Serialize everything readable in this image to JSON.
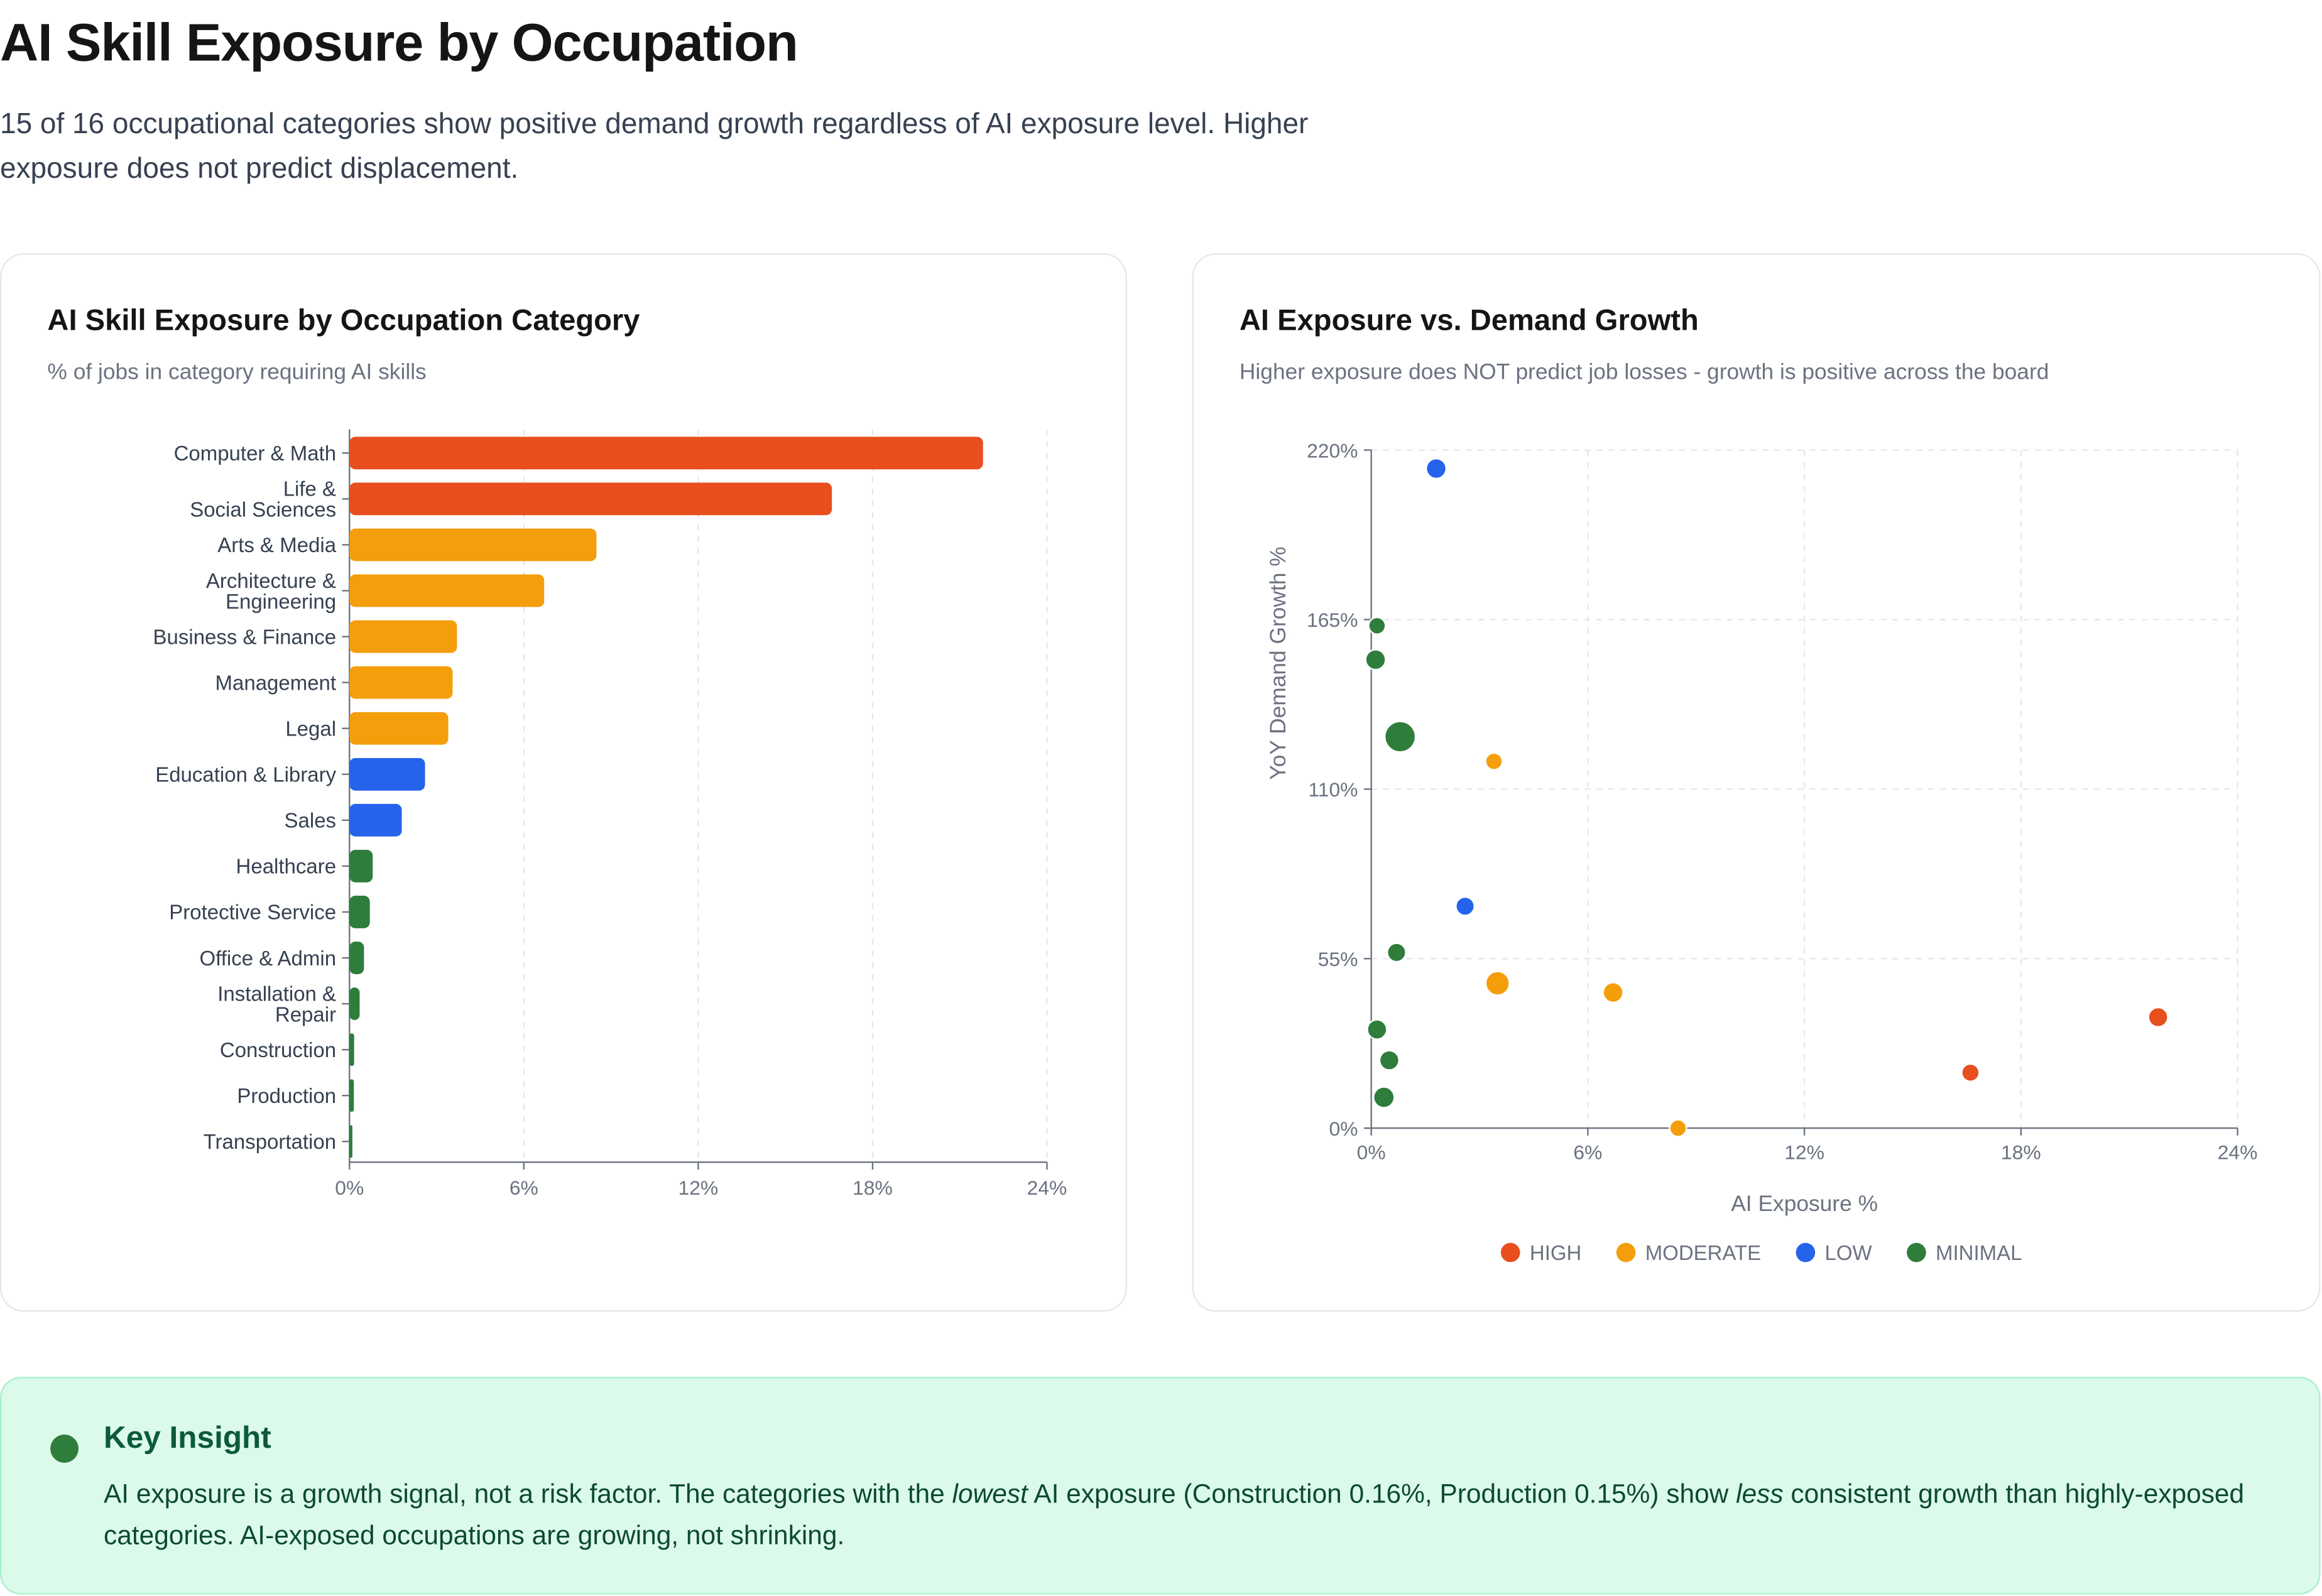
{
  "header": {
    "title": "AI Skill Exposure by Occupation",
    "subtitle": "15 of 16 occupational categories show positive demand growth regardless of AI exposure level. Higher exposure does not predict displacement."
  },
  "colors": {
    "HIGH": "#e84e1e",
    "MODERATE": "#f49e0c",
    "LOW": "#2563eb",
    "MINIMAL": "#2e7d3a"
  },
  "chart_data": [
    {
      "type": "bar",
      "orientation": "horizontal",
      "title": "AI Skill Exposure by Occupation Category",
      "subtitle": "% of jobs in category requiring AI skills",
      "xlabel": "",
      "ylabel": "",
      "xlim": [
        0,
        24
      ],
      "xticks": [
        "0%",
        "6%",
        "12%",
        "18%",
        "24%"
      ],
      "grid": "vertical dashed",
      "categories": [
        "Computer & Math",
        "Life & Social Sciences",
        "Arts & Media",
        "Architecture & Engineering",
        "Business & Finance",
        "Management",
        "Legal",
        "Education & Library",
        "Sales",
        "Healthcare",
        "Protective Service",
        "Office & Admin",
        "Installation & Repair",
        "Construction",
        "Production",
        "Transportation"
      ],
      "values": [
        21.8,
        16.6,
        8.5,
        6.7,
        3.7,
        3.55,
        3.4,
        2.6,
        1.8,
        0.8,
        0.7,
        0.5,
        0.35,
        0.16,
        0.15,
        0.1
      ],
      "groups": [
        "HIGH",
        "HIGH",
        "MODERATE",
        "MODERATE",
        "MODERATE",
        "MODERATE",
        "MODERATE",
        "LOW",
        "LOW",
        "MINIMAL",
        "MINIMAL",
        "MINIMAL",
        "MINIMAL",
        "MINIMAL",
        "MINIMAL",
        "MINIMAL"
      ]
    },
    {
      "type": "scatter",
      "title": "AI Exposure vs. Demand Growth",
      "subtitle": "Higher exposure does NOT predict job losses - growth is positive across the board",
      "xlabel": "AI Exposure %",
      "ylabel": "YoY Demand Growth %",
      "xlim": [
        0,
        24
      ],
      "ylim": [
        0,
        220
      ],
      "xticks": [
        "0%",
        "6%",
        "12%",
        "18%",
        "24%"
      ],
      "yticks": [
        "0%",
        "55%",
        "110%",
        "165%",
        "220%"
      ],
      "grid": "dashed both",
      "legend": {
        "position": "bottom",
        "entries": [
          "HIGH",
          "MODERATE",
          "LOW",
          "MINIMAL"
        ]
      },
      "points": [
        {
          "x": 1.8,
          "y": 214,
          "group": "LOW",
          "size": 3
        },
        {
          "x": 0.16,
          "y": 163,
          "group": "MINIMAL",
          "size": 2
        },
        {
          "x": 0.12,
          "y": 152,
          "group": "MINIMAL",
          "size": 3
        },
        {
          "x": 0.8,
          "y": 127,
          "group": "MINIMAL",
          "size": 8
        },
        {
          "x": 3.4,
          "y": 119,
          "group": "MODERATE",
          "size": 2
        },
        {
          "x": 2.6,
          "y": 72,
          "group": "LOW",
          "size": 2.5
        },
        {
          "x": 0.7,
          "y": 57,
          "group": "MINIMAL",
          "size": 2.5
        },
        {
          "x": 3.5,
          "y": 47,
          "group": "MODERATE",
          "size": 4.5
        },
        {
          "x": 6.7,
          "y": 44,
          "group": "MODERATE",
          "size": 3
        },
        {
          "x": 21.8,
          "y": 36,
          "group": "HIGH",
          "size": 2.8
        },
        {
          "x": 0.16,
          "y": 32,
          "group": "MINIMAL",
          "size": 2.8
        },
        {
          "x": 0.5,
          "y": 22,
          "group": "MINIMAL",
          "size": 2.8
        },
        {
          "x": 16.6,
          "y": 18,
          "group": "HIGH",
          "size": 2.2
        },
        {
          "x": 0.35,
          "y": 10,
          "group": "MINIMAL",
          "size": 3.3
        },
        {
          "x": 8.5,
          "y": 0,
          "group": "MODERATE",
          "size": 2
        }
      ]
    }
  ],
  "insight": {
    "title": "Key Insight",
    "text_1": "AI exposure is a growth signal, not a risk factor. The categories with the ",
    "em_1": "lowest",
    "text_2": " AI exposure (Construction 0.16%, Production 0.15%) show ",
    "em_2": "less",
    "text_3": " consistent growth than highly-exposed categories. AI-exposed occupations are growing, not shrinking."
  }
}
